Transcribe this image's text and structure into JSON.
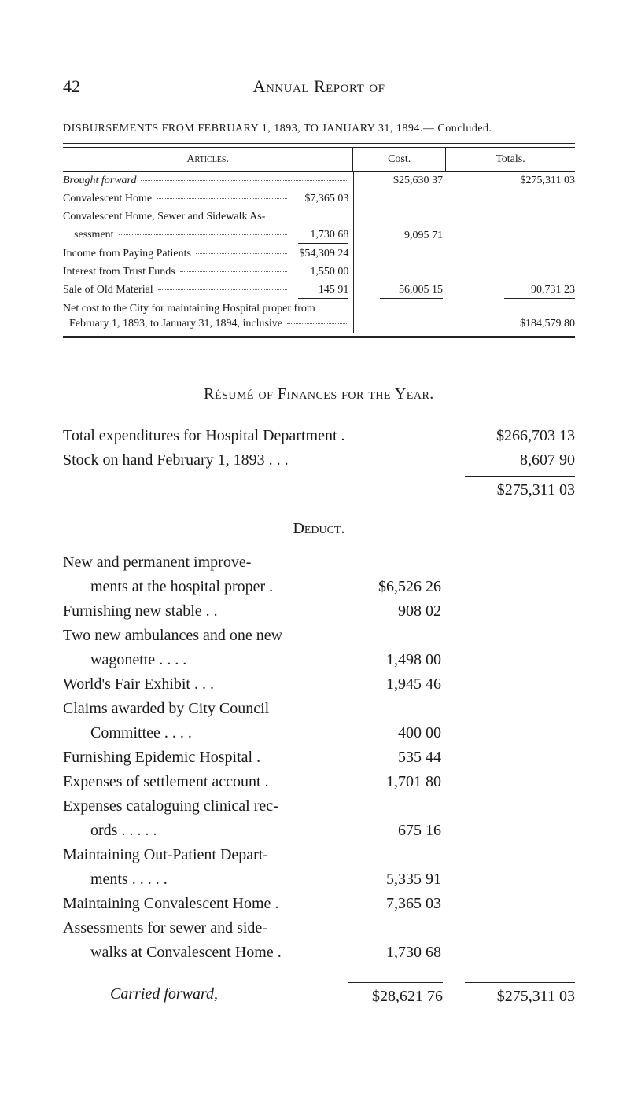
{
  "header": {
    "page_number": "42",
    "title": "Annual Report of"
  },
  "table": {
    "caption": "DISBURSEMENTS FROM FEBRUARY 1, 1893, TO JANUARY 31, 1894.— Concluded.",
    "columns": {
      "articles": "Articles.",
      "cost": "Cost.",
      "totals": "Totals."
    },
    "brought_forward": {
      "label": "Brought forward",
      "cost": "$25,630 37",
      "total": "$275,311 03"
    },
    "group_a": {
      "lines": [
        {
          "label": "Convalescent Home",
          "amount": "$7,365 03"
        },
        {
          "label": "Convalescent Home, Sewer and Sidewalk As-",
          "amount": ""
        },
        {
          "label": "sessment",
          "amount": "1,730 68",
          "indent": true
        }
      ],
      "subtotal_cost": "9,095 71"
    },
    "group_b": {
      "lines": [
        {
          "label": "Income from Paying Patients",
          "amount": "$54,309 24"
        },
        {
          "label": "Interest from Trust Funds",
          "amount": "1,550 00"
        },
        {
          "label": "Sale of Old Material",
          "amount": "145 91"
        }
      ],
      "subtotal_cost": "56,005 15",
      "subtotal_total": "90,731 23"
    },
    "net_cost": {
      "line1": "Net cost to the City for maintaining Hospital proper from",
      "line2": "February 1, 1893, to January 31, 1894, inclusive",
      "total": "$184,579 80"
    }
  },
  "resume": {
    "title": "Résumé of Finances for the Year.",
    "rows": [
      {
        "label": "Total expenditures for Hospital Department .",
        "amount": "$266,703 13"
      },
      {
        "label": "Stock on hand February 1, 1893 .   .   .",
        "amount": "8,607 90"
      }
    ],
    "sum": "$275,311 03"
  },
  "deduct": {
    "title": "Deduct.",
    "rows": [
      {
        "label": "New and permanent improve-",
        "amount": ""
      },
      {
        "label": "ments at the hospital proper .",
        "amount": "$6,526 26",
        "indent": true
      },
      {
        "label": "Furnishing new stable   .   .",
        "amount": "908 02"
      },
      {
        "label": "Two new ambulances and one new",
        "amount": ""
      },
      {
        "label": "wagonette   .   .   .   .",
        "amount": "1,498 00",
        "indent": true
      },
      {
        "label": "World's Fair Exhibit .   .   .",
        "amount": "1,945 46"
      },
      {
        "label": "Claims awarded by City Council",
        "amount": ""
      },
      {
        "label": "Committee   .   .   .   .",
        "amount": "400 00",
        "indent": true
      },
      {
        "label": "Furnishing Epidemic Hospital   .",
        "amount": "535 44"
      },
      {
        "label": "Expenses of settlement account   .",
        "amount": "1,701 80"
      },
      {
        "label": "Expenses cataloguing clinical rec-",
        "amount": ""
      },
      {
        "label": "ords   .   .   .   .   .",
        "amount": "675 16",
        "indent": true
      },
      {
        "label": "Maintaining Out-Patient Depart-",
        "amount": ""
      },
      {
        "label": "ments   .   .   .   .   .",
        "amount": "5,335 91",
        "indent": true
      },
      {
        "label": "Maintaining Convalescent Home .",
        "amount": "7,365 03"
      },
      {
        "label": "Assessments for sewer and side-",
        "amount": ""
      },
      {
        "label": "walks at Convalescent Home   .",
        "amount": "1,730 68",
        "indent": true
      }
    ],
    "footer": {
      "label": "Carried forward,",
      "col1": "$28,621 76",
      "col2": "$275,311 03"
    }
  }
}
